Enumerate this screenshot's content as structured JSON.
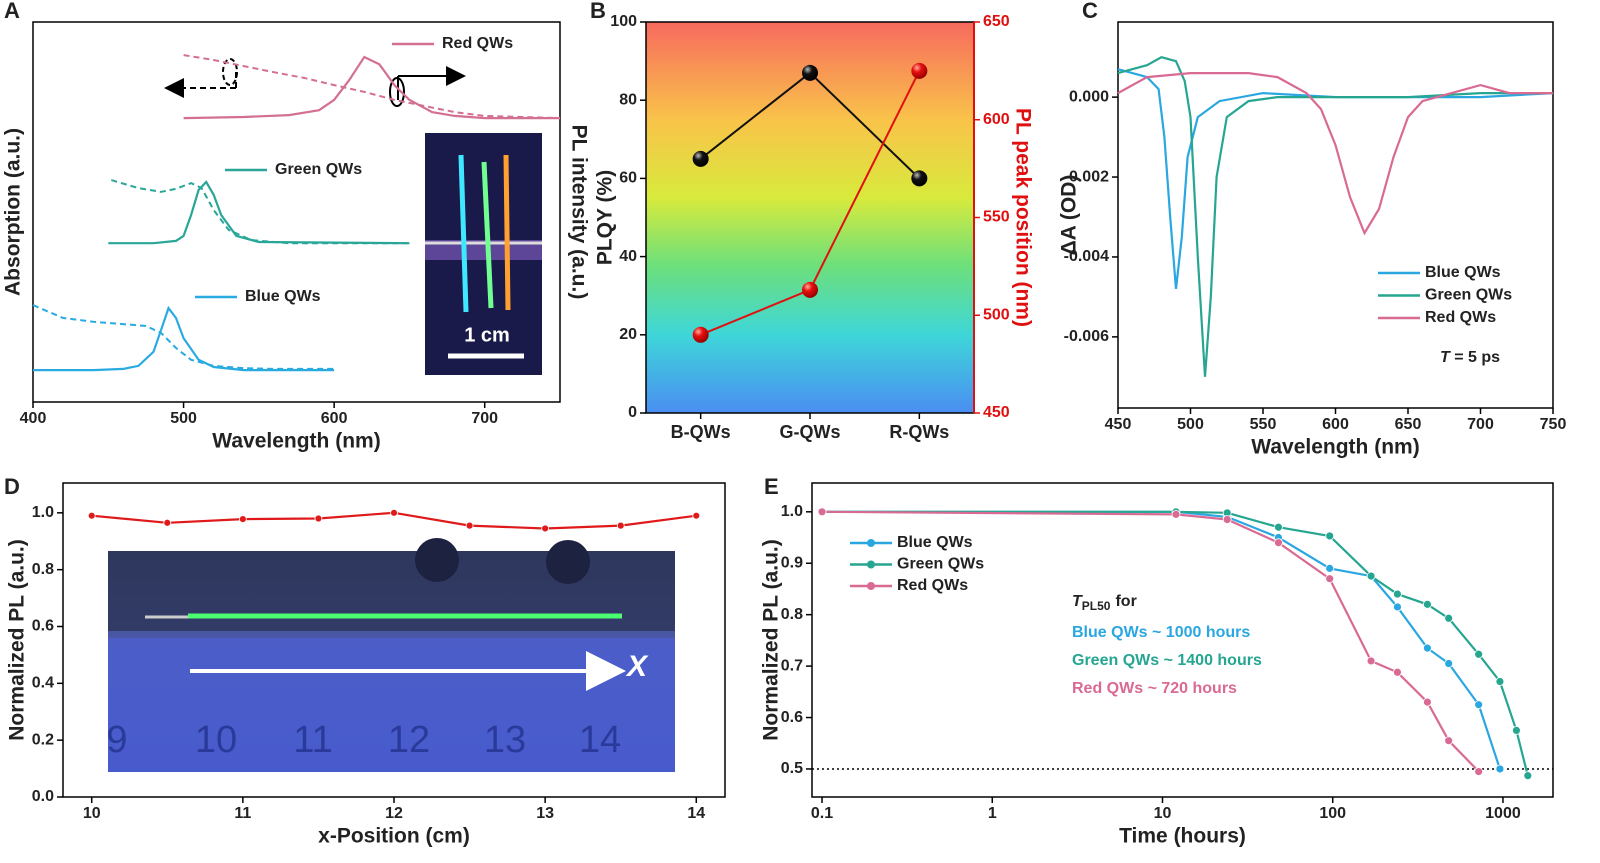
{
  "chart_data": [
    {
      "panel": "A",
      "type": "line",
      "xlabel": "Wavelength (nm)",
      "ylabel": "Absorption (a.u.)",
      "y2label": "PL intensity (a.u.)",
      "xlim": [
        400,
        750
      ],
      "xticks": [
        400,
        500,
        600,
        700
      ],
      "ylim": [
        0,
        1
      ],
      "inset_label": "1 cm",
      "series": [
        {
          "name": "Blue QWs",
          "color": "#29abe2",
          "x": [
            400,
            440,
            460,
            470,
            480,
            485,
            490,
            495,
            500,
            510,
            520,
            540,
            600
          ],
          "values": [
            0.084,
            0.084,
            0.087,
            0.095,
            0.132,
            0.189,
            0.247,
            0.221,
            0.168,
            0.111,
            0.092,
            0.084,
            0.084
          ],
          "absorption_x": [
            400,
            420,
            440,
            460,
            475,
            485,
            495,
            505,
            520,
            540,
            560,
            600
          ],
          "absorption": [
            0.255,
            0.221,
            0.211,
            0.205,
            0.2,
            0.182,
            0.142,
            0.111,
            0.095,
            0.089,
            0.087,
            0.087
          ]
        },
        {
          "name": "Green QWs",
          "color": "#2aa698",
          "x": [
            450,
            480,
            495,
            500,
            505,
            510,
            515,
            520,
            525,
            535,
            550,
            650
          ],
          "values": [
            0.418,
            0.418,
            0.424,
            0.437,
            0.492,
            0.558,
            0.579,
            0.545,
            0.492,
            0.437,
            0.421,
            0.418
          ],
          "absorption_x": [
            452,
            470,
            485,
            495,
            505,
            512,
            520,
            530,
            545,
            570,
            650
          ],
          "absorption": [
            0.584,
            0.563,
            0.553,
            0.561,
            0.576,
            0.563,
            0.505,
            0.453,
            0.426,
            0.418,
            0.418
          ]
        },
        {
          "name": "Red QWs",
          "color": "#d4708f",
          "x": [
            500,
            540,
            570,
            590,
            600,
            610,
            620,
            630,
            640,
            650,
            665,
            680,
            700,
            750
          ],
          "values": [
            0.747,
            0.75,
            0.755,
            0.768,
            0.795,
            0.847,
            0.908,
            0.889,
            0.834,
            0.795,
            0.763,
            0.753,
            0.747,
            0.747
          ],
          "absorption_x": [
            500,
            520,
            540,
            560,
            580,
            600,
            620,
            640,
            660,
            680,
            700,
            750
          ],
          "absorption": [
            0.913,
            0.9,
            0.884,
            0.868,
            0.853,
            0.834,
            0.816,
            0.795,
            0.779,
            0.763,
            0.753,
            0.747
          ]
        }
      ]
    },
    {
      "panel": "B",
      "type": "line",
      "ylabel": "PLQY (%)",
      "y2label": "PL peak position (nm)",
      "categories": [
        "B-QWs",
        "G-QWs",
        "R-QWs"
      ],
      "ylim": [
        0,
        100
      ],
      "yticks": [
        0,
        20,
        40,
        60,
        80,
        100
      ],
      "y2lim": [
        450,
        650
      ],
      "y2ticks": [
        450,
        500,
        550,
        600,
        650
      ],
      "markers": true,
      "series": [
        {
          "color": "#111111",
          "values": [
            65,
            87,
            60
          ]
        },
        {
          "color": "#e01010",
          "values": [
            490,
            513,
            625
          ],
          "axis": "y2"
        }
      ]
    },
    {
      "panel": "C",
      "type": "line",
      "xlabel": "Wavelength (nm)",
      "ylabel": "ΔA (OD)",
      "xlim": [
        450,
        750
      ],
      "xticks": [
        450,
        500,
        550,
        600,
        650,
        700,
        750
      ],
      "ylim": [
        -0.00778,
        0.00188
      ],
      "yticks": [
        {
          "value": 0,
          "label": "0.000"
        },
        -0.002,
        -0.004,
        -0.006
      ],
      "annotation": {
        "variable": "T",
        "text": "= 5 ps"
      },
      "series": [
        {
          "name": "Blue QWs",
          "color": "#2aa7e0",
          "x": [
            450,
            470,
            478,
            482,
            486,
            490,
            494,
            498,
            505,
            520,
            550,
            600,
            650,
            700,
            750
          ],
          "values": [
            0.0007,
            0.0005,
            0.0002,
            -0.001,
            -0.003,
            -0.0048,
            -0.0035,
            -0.0015,
            -0.0005,
            -0.0001,
            0.0001,
            0,
            0,
            0,
            0.0001
          ]
        },
        {
          "name": "Green QWs",
          "color": "#26a691",
          "x": [
            450,
            470,
            480,
            490,
            496,
            500,
            505,
            510,
            514,
            518,
            525,
            540,
            560,
            600,
            650,
            700,
            750
          ],
          "values": [
            0.0006,
            0.0008,
            0.001,
            0.0009,
            0.0004,
            -0.0005,
            -0.004,
            -0.007,
            -0.005,
            -0.002,
            -0.0005,
            -0.0001,
            0,
            0,
            0,
            0.0001,
            0.0001
          ]
        },
        {
          "name": "Red QWs",
          "color": "#d86a94",
          "x": [
            450,
            470,
            500,
            540,
            560,
            580,
            590,
            600,
            610,
            620,
            630,
            640,
            650,
            660,
            680,
            700,
            720,
            750
          ],
          "values": [
            0.0001,
            0.0005,
            0.0006,
            0.0006,
            0.0005,
            0.0001,
            -0.0003,
            -0.0012,
            -0.0025,
            -0.0034,
            -0.0028,
            -0.0015,
            -0.0005,
            -0.0001,
            0.0001,
            0.0003,
            0.0001,
            0.0001
          ]
        }
      ]
    },
    {
      "panel": "D",
      "type": "line",
      "xlabel": "x-Position (cm)",
      "ylabel": "Normalized PL (a.u.)",
      "xlim": [
        9.81,
        14.19
      ],
      "xticks": [
        10,
        11,
        12,
        13,
        14
      ],
      "ylim": [
        0,
        1.105
      ],
      "yticks": [
        {
          "value": 0,
          "label": "0.0"
        },
        0.2,
        0.4,
        0.6,
        0.8,
        {
          "value": 1,
          "label": "1.0"
        }
      ],
      "markers": true,
      "inset": {
        "ruler_labels": [
          "9",
          "10",
          "11",
          "12",
          "13",
          "14"
        ],
        "axis_label": "X"
      },
      "series": [
        {
          "color": "#e01a1a",
          "x": [
            10,
            10.5,
            11,
            11.5,
            12,
            12.5,
            13,
            13.5,
            14
          ],
          "values": [
            0.99,
            0.965,
            0.978,
            0.98,
            1.0,
            0.955,
            0.945,
            0.955,
            0.99
          ]
        }
      ]
    },
    {
      "panel": "E",
      "type": "line",
      "xlabel": "Time (hours)",
      "ylabel": "Normalized PL (a.u.)",
      "xlog": true,
      "xlim": [
        0.0873,
        1968
      ],
      "xticks": [
        0.1,
        1,
        10,
        100,
        1000
      ],
      "ylim": [
        0.4455,
        1.056
      ],
      "yticks": [
        0.5,
        0.6,
        0.7,
        0.8,
        0.9,
        {
          "value": 1,
          "label": "1.0"
        }
      ],
      "threshold": 0.5,
      "markers": true,
      "annotation": {
        "symbol": "T",
        "subscript": "PL50",
        "text": "for",
        "lines": [
          "Blue QWs ~ 1000 hours",
          "Green QWs ~ 1400 hours",
          "Red QWs ~ 720 hours"
        ]
      },
      "series": [
        {
          "name": "Blue QWs",
          "color": "#2aa7e0",
          "x": [
            0.1,
            12,
            24,
            48,
            96,
            168,
            240,
            360,
            480,
            720,
            960
          ],
          "values": [
            1.0,
            1.0,
            0.99,
            0.95,
            0.89,
            0.875,
            0.815,
            0.735,
            0.705,
            0.625,
            0.5
          ]
        },
        {
          "name": "Green QWs",
          "color": "#26a691",
          "x": [
            0.1,
            12,
            24,
            48,
            96,
            168,
            240,
            360,
            480,
            720,
            960,
            1200,
            1400
          ],
          "values": [
            1.0,
            1.0,
            0.998,
            0.97,
            0.953,
            0.875,
            0.84,
            0.82,
            0.793,
            0.723,
            0.67,
            0.575,
            0.487
          ]
        },
        {
          "name": "Red QWs",
          "color": "#d86a94",
          "x": [
            0.1,
            12,
            24,
            48,
            96,
            168,
            240,
            360,
            480,
            720
          ],
          "values": [
            1.0,
            0.995,
            0.985,
            0.94,
            0.87,
            0.71,
            0.688,
            0.63,
            0.555,
            0.495
          ]
        }
      ]
    }
  ]
}
